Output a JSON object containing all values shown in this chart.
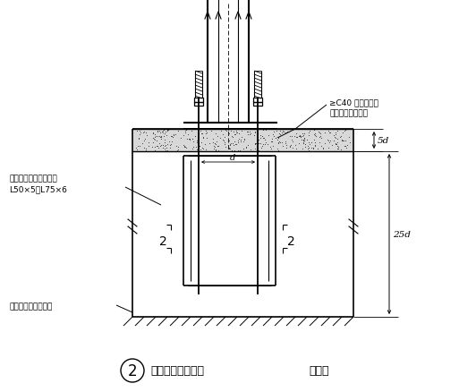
{
  "bg_color": "#ffffff",
  "line_color": "#000000",
  "title_text": "柱脚锚栓固定支架",
  "title_num": "2",
  "title_suffix": "（二）",
  "annotation_top_right1": "≥C40 无收缩碎石",
  "annotation_top_right2": "混凝土或膨胀砂浆",
  "annotation_left_top1": "锚栓固定角钢，通常用",
  "annotation_left_top2": "L50×5～L75×6",
  "annotation_left_bottom": "锚栓固定架设置标高",
  "label_d": "d",
  "label_5d": "5d",
  "label_25d": "25d",
  "label_2": "2"
}
